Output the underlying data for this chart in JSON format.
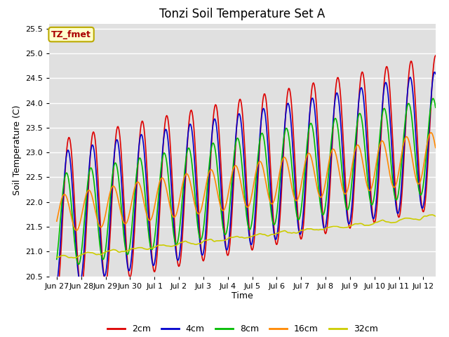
{
  "title": "Tonzi Soil Temperature Set A",
  "xlabel": "Time",
  "ylabel": "Soil Temperature (C)",
  "ylim": [
    20.5,
    25.6
  ],
  "annotation_text": "TZ_fmet",
  "annotation_bbox_facecolor": "#ffffcc",
  "annotation_bbox_edgecolor": "#bbaa00",
  "series": {
    "2cm": {
      "color": "#dd0000",
      "lw": 1.2
    },
    "4cm": {
      "color": "#0000cc",
      "lw": 1.2
    },
    "8cm": {
      "color": "#00bb00",
      "lw": 1.2
    },
    "16cm": {
      "color": "#ff8800",
      "lw": 1.2
    },
    "32cm": {
      "color": "#cccc00",
      "lw": 1.2
    }
  },
  "tick_labels": [
    "Jun 27",
    "Jun 28",
    "Jun 29",
    "Jun 30",
    "Jul 1",
    "Jul 2",
    "Jul 3",
    "Jul 4",
    "Jul 5",
    "Jul 6",
    "Jul 7",
    "Jul 8",
    "Jul 9",
    "Jul 10",
    "Jul 11",
    "Jul 12"
  ],
  "yticks": [
    20.5,
    21.0,
    21.5,
    22.0,
    22.5,
    23.0,
    23.5,
    24.0,
    24.5,
    25.0,
    25.5
  ],
  "fig_facecolor": "#ffffff",
  "axes_facecolor": "#e0e0e0",
  "title_fontsize": 12,
  "legend_fontsize": 9,
  "grid_color": "#ffffff",
  "grid_lw": 1.0,
  "tick_fontsize": 8
}
